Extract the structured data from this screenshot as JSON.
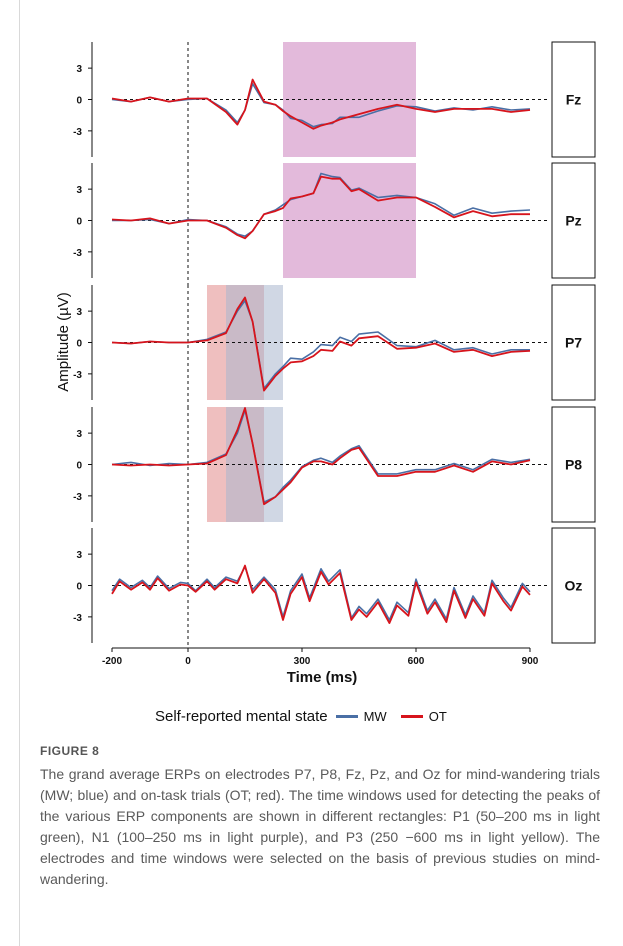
{
  "figure": {
    "label": "FIGURE 8",
    "caption": "The grand average ERPs on electrodes P7, P8, Fz, Pz, and Oz for mind-wandering trials (MW; blue) and on-task trials (OT; red). The time windows used for detecting the peaks of the various ERP components are shown in different rectangles: P1 (50–200 ms in light green), N1 (100–250 ms in light purple), and P3 (250 −600 ms in light yellow). The electrodes and time windows were selected on the basis of previous studies on mind-wandering.",
    "legend": {
      "title": "Self-reported mental state",
      "items": [
        {
          "label": "MW",
          "color": "#4a6fa5"
        },
        {
          "label": "OT",
          "color": "#d7141c"
        }
      ]
    }
  },
  "chart_data": {
    "type": "line",
    "xlabel": "Time (ms)",
    "ylabel": "Amplitude (µV)",
    "xlim": [
      -200,
      900
    ],
    "x_ticks": [
      -200,
      0,
      300,
      600,
      900
    ],
    "y_tick_labels": [
      "3",
      "0",
      "-3"
    ],
    "panels": [
      {
        "electrode": "Fz",
        "ylim": [
          -5.5,
          5.5
        ],
        "windows": [
          {
            "start": 250,
            "end": 600,
            "color": "#d9a3cf"
          }
        ],
        "series": [
          {
            "name": "MW",
            "color": "#4a6fa5",
            "x": [
              -200,
              -150,
              -100,
              -50,
              0,
              50,
              100,
              130,
              150,
              170,
              200,
              230,
              250,
              270,
              300,
              330,
              350,
              380,
              400,
              450,
              500,
              550,
              600,
              650,
              700,
              750,
              800,
              850,
              900
            ],
            "values": [
              0,
              -0.2,
              0.2,
              -0.2,
              0,
              0.1,
              -1,
              -2.2,
              -1,
              1.5,
              -0.3,
              -0.5,
              -1,
              -1.8,
              -2,
              -2.6,
              -2.4,
              -2.3,
              -1.7,
              -1.7,
              -1.1,
              -0.6,
              -0.7,
              -1.1,
              -0.8,
              -1,
              -0.7,
              -1,
              -0.9
            ]
          },
          {
            "name": "OT",
            "color": "#d7141c",
            "x": [
              -200,
              -150,
              -100,
              -50,
              0,
              50,
              100,
              130,
              150,
              170,
              200,
              230,
              250,
              270,
              300,
              330,
              350,
              380,
              400,
              450,
              500,
              550,
              600,
              650,
              700,
              750,
              800,
              850,
              900
            ],
            "values": [
              0.1,
              -0.2,
              0.2,
              -0.2,
              0.1,
              0.1,
              -1.2,
              -2.4,
              -1,
              1.9,
              -0.2,
              -0.5,
              -1.1,
              -1.6,
              -2.2,
              -2.8,
              -2.5,
              -2.2,
              -1.9,
              -1.4,
              -0.9,
              -0.5,
              -0.9,
              -1.2,
              -0.9,
              -0.9,
              -0.9,
              -1.2,
              -1
            ]
          }
        ]
      },
      {
        "electrode": "Pz",
        "ylim": [
          -5.5,
          5.5
        ],
        "windows": [
          {
            "start": 250,
            "end": 600,
            "color": "#d9a3cf"
          }
        ],
        "series": [
          {
            "name": "MW",
            "color": "#4a6fa5",
            "x": [
              -200,
              -150,
              -100,
              -50,
              0,
              50,
              100,
              130,
              150,
              170,
              200,
              230,
              250,
              270,
              300,
              330,
              350,
              380,
              400,
              430,
              450,
              500,
              550,
              600,
              650,
              700,
              750,
              800,
              850,
              900
            ],
            "values": [
              0,
              0,
              0.1,
              -0.3,
              0.1,
              0,
              -0.6,
              -1.3,
              -1.5,
              -1,
              0.6,
              1,
              1.5,
              2,
              2.3,
              2.6,
              4.5,
              4.2,
              4.1,
              2.9,
              3.1,
              2.2,
              2.4,
              2.2,
              1.6,
              0.5,
              1.2,
              0.7,
              0.9,
              1
            ]
          },
          {
            "name": "OT",
            "color": "#d7141c",
            "x": [
              -200,
              -150,
              -100,
              -50,
              0,
              50,
              100,
              130,
              150,
              170,
              200,
              230,
              250,
              270,
              300,
              330,
              350,
              380,
              400,
              430,
              450,
              500,
              550,
              600,
              650,
              700,
              750,
              800,
              850,
              900
            ],
            "values": [
              0.1,
              0,
              0.2,
              -0.3,
              0,
              0,
              -0.7,
              -1.4,
              -1.7,
              -1,
              0.6,
              0.9,
              1.2,
              2.1,
              2.3,
              2.6,
              4.2,
              4,
              4,
              2.8,
              3,
              1.9,
              2.2,
              2.2,
              1.3,
              0.3,
              0.9,
              0.4,
              0.6,
              0.6
            ]
          }
        ]
      },
      {
        "electrode": "P7",
        "ylim": [
          -5.5,
          5.5
        ],
        "windows": [
          {
            "start": 50,
            "end": 200,
            "color": "#e9a9a9"
          },
          {
            "start": 100,
            "end": 250,
            "color": "#aab6ce"
          }
        ],
        "series": [
          {
            "name": "MW",
            "color": "#4a6fa5",
            "x": [
              -200,
              -150,
              -100,
              -50,
              0,
              50,
              100,
              130,
              150,
              170,
              200,
              230,
              250,
              270,
              300,
              330,
              350,
              380,
              400,
              430,
              450,
              500,
              550,
              600,
              650,
              700,
              750,
              800,
              850,
              900
            ],
            "values": [
              0,
              -0.1,
              0.1,
              0,
              0,
              0.3,
              1,
              3,
              4,
              2,
              -4.4,
              -3,
              -2.3,
              -1.5,
              -1.6,
              -0.9,
              -0.2,
              -0.3,
              0.5,
              0.1,
              0.8,
              1,
              -0.3,
              -0.4,
              0.2,
              -0.7,
              -0.5,
              -1.1,
              -0.7,
              -0.7
            ]
          },
          {
            "name": "OT",
            "color": "#d7141c",
            "x": [
              -200,
              -150,
              -100,
              -50,
              0,
              50,
              100,
              130,
              150,
              170,
              200,
              230,
              250,
              270,
              300,
              330,
              350,
              380,
              400,
              430,
              450,
              500,
              550,
              600,
              650,
              700,
              750,
              800,
              850,
              900
            ],
            "values": [
              0,
              -0.1,
              0.1,
              0,
              0,
              0.2,
              0.9,
              3.2,
              4.3,
              2,
              -4.6,
              -3.2,
              -2.5,
              -1.9,
              -1.8,
              -1.3,
              -0.7,
              -0.8,
              0.1,
              -0.3,
              0.4,
              0.6,
              -0.6,
              -0.5,
              -0.1,
              -0.9,
              -0.7,
              -1.3,
              -0.9,
              -0.8
            ]
          }
        ]
      },
      {
        "electrode": "P8",
        "ylim": [
          -5.5,
          5.5
        ],
        "windows": [
          {
            "start": 50,
            "end": 200,
            "color": "#e9a9a9"
          },
          {
            "start": 100,
            "end": 250,
            "color": "#aab6ce"
          }
        ],
        "series": [
          {
            "name": "MW",
            "color": "#4a6fa5",
            "x": [
              -200,
              -150,
              -100,
              -50,
              0,
              50,
              100,
              130,
              150,
              170,
              200,
              230,
              250,
              270,
              300,
              330,
              350,
              380,
              400,
              430,
              450,
              500,
              550,
              600,
              650,
              700,
              750,
              800,
              850,
              900
            ],
            "values": [
              0,
              0.2,
              -0.1,
              0.1,
              0,
              0.2,
              1,
              3,
              5.2,
              2,
              -3.6,
              -3.1,
              -2.2,
              -1.5,
              -0.2,
              0.4,
              0.6,
              0.2,
              0.8,
              1.5,
              1.8,
              -0.9,
              -0.9,
              -0.5,
              -0.5,
              0.1,
              -0.5,
              0.5,
              0.2,
              0.5
            ]
          },
          {
            "name": "OT",
            "color": "#d7141c",
            "x": [
              -200,
              -150,
              -100,
              -50,
              0,
              50,
              100,
              130,
              150,
              170,
              200,
              230,
              250,
              270,
              300,
              330,
              350,
              380,
              400,
              430,
              450,
              500,
              550,
              600,
              650,
              700,
              750,
              800,
              850,
              900
            ],
            "values": [
              0,
              -0.1,
              0,
              -0.1,
              0,
              0.1,
              0.9,
              3.3,
              5.4,
              2,
              -3.8,
              -3.1,
              -2.4,
              -1.7,
              -0.3,
              0.3,
              0.3,
              0,
              0.6,
              1.4,
              1.6,
              -1.1,
              -1.1,
              -0.7,
              -0.7,
              -0.1,
              -0.7,
              0.3,
              0,
              0.4
            ]
          }
        ]
      },
      {
        "electrode": "Oz",
        "ylim": [
          -5.5,
          5.5
        ],
        "windows": [],
        "series": [
          {
            "name": "MW",
            "color": "#4a6fa5",
            "x": [
              -200,
              -180,
              -150,
              -120,
              -100,
              -80,
              -50,
              -20,
              0,
              20,
              50,
              70,
              100,
              130,
              150,
              170,
              200,
              230,
              250,
              270,
              300,
              320,
              350,
              370,
              400,
              430,
              450,
              470,
              500,
              530,
              550,
              580,
              600,
              630,
              650,
              680,
              700,
              730,
              750,
              780,
              800,
              830,
              850,
              880,
              900
            ],
            "values": [
              -0.5,
              0.6,
              -0.2,
              0.5,
              -0.2,
              0.9,
              -0.3,
              0.3,
              0.2,
              -0.5,
              0.6,
              -0.2,
              0.8,
              0.4,
              1.8,
              -0.4,
              0.8,
              -0.4,
              -3,
              -0.5,
              1.1,
              -1.2,
              1.6,
              0.4,
              1.5,
              -3.1,
              -2,
              -2.7,
              -1.3,
              -3.3,
              -1.6,
              -2.6,
              0.6,
              -2.4,
              -1.3,
              -3.2,
              -0.2,
              -2.8,
              -1,
              -2.6,
              0.5,
              -1.2,
              -2.1,
              0.2,
              -0.6
            ]
          },
          {
            "name": "OT",
            "color": "#d7141c",
            "x": [
              -200,
              -180,
              -150,
              -120,
              -100,
              -80,
              -50,
              -20,
              0,
              20,
              50,
              70,
              100,
              130,
              150,
              170,
              200,
              230,
              250,
              270,
              300,
              320,
              350,
              370,
              400,
              430,
              450,
              470,
              500,
              530,
              550,
              580,
              600,
              630,
              650,
              680,
              700,
              730,
              750,
              780,
              800,
              830,
              850,
              880,
              900
            ],
            "values": [
              -0.8,
              0.4,
              -0.4,
              0.3,
              -0.4,
              0.7,
              -0.5,
              0.1,
              0,
              -0.6,
              0.4,
              -0.4,
              0.6,
              0.2,
              1.9,
              -0.7,
              0.6,
              -0.7,
              -3.3,
              -0.8,
              0.8,
              -1.5,
              1.3,
              0.1,
              1.2,
              -3.3,
              -2.3,
              -3,
              -1.6,
              -3.6,
              -1.9,
              -2.9,
              0.3,
              -2.7,
              -1.6,
              -3.5,
              -0.5,
              -3.1,
              -1.3,
              -2.9,
              0.2,
              -1.5,
              -2.4,
              -0.1,
              -0.9
            ]
          }
        ]
      }
    ]
  }
}
